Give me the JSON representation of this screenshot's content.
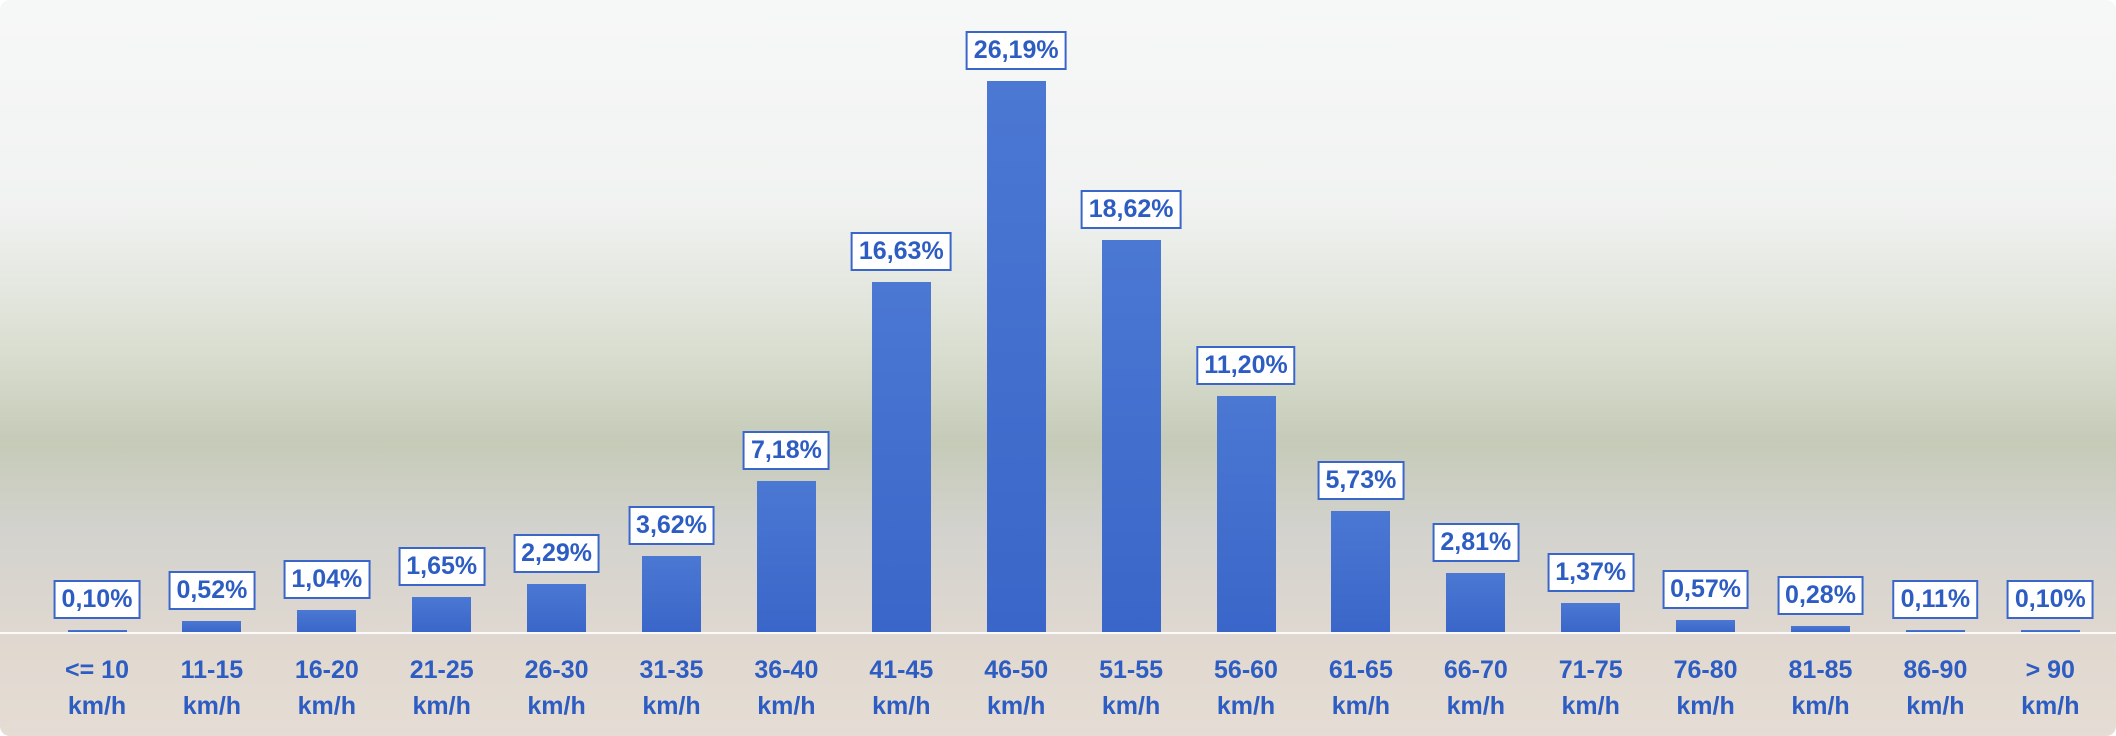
{
  "chart_data": {
    "type": "bar",
    "categories": [
      "<= 10 km/h",
      "11-15 km/h",
      "16-20 km/h",
      "21-25 km/h",
      "26-30 km/h",
      "31-35 km/h",
      "36-40 km/h",
      "41-45 km/h",
      "46-50 km/h",
      "51-55 km/h",
      "56-60 km/h",
      "61-65 km/h",
      "66-70 km/h",
      "71-75 km/h",
      "76-80 km/h",
      "81-85 km/h",
      "86-90 km/h",
      "> 90 km/h"
    ],
    "values": [
      0.1,
      0.52,
      1.04,
      1.65,
      2.29,
      3.62,
      7.18,
      16.63,
      26.19,
      18.62,
      11.2,
      5.73,
      2.81,
      1.37,
      0.57,
      0.28,
      0.11,
      0.1
    ],
    "value_labels": [
      "0,10%",
      "0,52%",
      "1,04%",
      "1,65%",
      "2,29%",
      "3,62%",
      "7,18%",
      "16,63%",
      "26,19%",
      "18,62%",
      "11,20%",
      "5,73%",
      "2,81%",
      "1,37%",
      "0,57%",
      "0,28%",
      "0,11%",
      "0,10%"
    ],
    "color": "#3a66c9"
  }
}
